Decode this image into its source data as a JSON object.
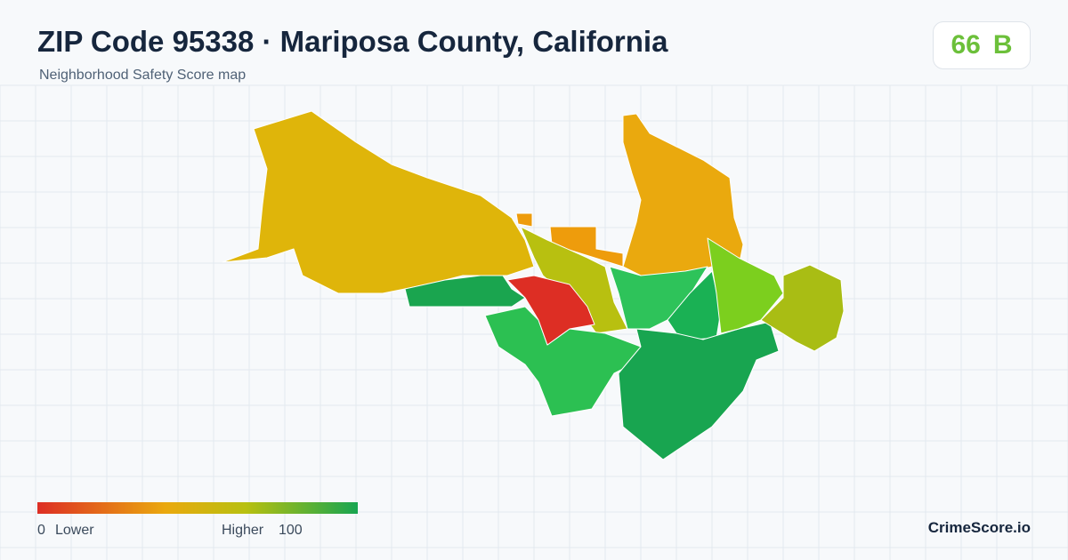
{
  "header": {
    "title": "ZIP Code 95338 · Mariposa County, California",
    "subtitle": "Neighborhood Safety Score map"
  },
  "badge": {
    "score": "66",
    "grade": "B"
  },
  "legend": {
    "min": "0",
    "min_label": "Lower",
    "max_label": "Higher",
    "max": "100"
  },
  "brand": "CrimeScore.io"
}
